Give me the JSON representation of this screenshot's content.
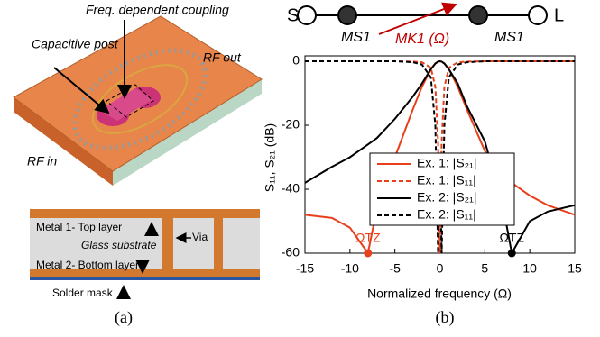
{
  "panel_a": {
    "labels": {
      "coupling": "Freq. dependent coupling",
      "post": "Capacitive post",
      "rf_out": "RF out",
      "rf_in": "RF in"
    },
    "cross_section": {
      "top": "Metal 1- Top layer",
      "glass": "Glass substrate",
      "via": "Via",
      "bottom": "Metal 2- Bottom layer",
      "mask": "Solder mask"
    },
    "caption": "(a)"
  },
  "coupling_diagram": {
    "source": "S",
    "load": "L",
    "m_s1_left": "MS1",
    "m_k1": "MK1 (Ω)",
    "m_s1_right": "MS1"
  },
  "chart_data": {
    "type": "line",
    "x": [
      -15,
      -12,
      -10,
      -8,
      -7,
      -5,
      -3,
      -2,
      -1,
      -0.5,
      -0.2,
      0,
      0.2,
      0.5,
      1,
      2,
      3,
      5,
      7,
      8,
      10,
      12,
      15
    ],
    "series": [
      {
        "name": "Ex. 1: |S₂₁|",
        "color": "#e8401c",
        "style": "solid",
        "values": [
          -48,
          -49,
          -52,
          -60,
          -46,
          -30,
          -15,
          -8,
          -2.5,
          -0.7,
          -0.1,
          0,
          -0.1,
          -0.7,
          -2.5,
          -8,
          -15,
          -28,
          -36,
          -38,
          -42,
          -45,
          -48
        ]
      },
      {
        "name": "Ex. 1: |S₁₁|",
        "color": "#e8401c",
        "style": "dashed",
        "values": [
          0,
          0,
          0,
          0,
          0,
          0,
          -0.1,
          -0.3,
          -2,
          -8,
          -25,
          -60,
          -25,
          -8,
          -2,
          -0.3,
          -0.1,
          0,
          0,
          0,
          0,
          0,
          0
        ]
      },
      {
        "name": "Ex. 2: |S₂₁|",
        "color": "#000000",
        "style": "solid",
        "values": [
          -38,
          -33,
          -30,
          -26,
          -24,
          -18,
          -11,
          -7,
          -2.5,
          -0.7,
          -0.1,
          0,
          -0.1,
          -0.7,
          -2.5,
          -7,
          -14,
          -25,
          -45,
          -60,
          -50,
          -47,
          -45
        ]
      },
      {
        "name": "Ex. 2: |S₁₁|",
        "color": "#000000",
        "style": "dashed",
        "values": [
          0,
          0,
          0,
          0,
          0,
          0,
          -0.3,
          -1,
          -5,
          -20,
          -60,
          -30,
          -60,
          -20,
          -5,
          -1,
          -0.3,
          0,
          0,
          0,
          0,
          0,
          0
        ]
      }
    ],
    "annotations": [
      {
        "text": "ΩTZ",
        "x": -8,
        "y": -60,
        "color": "#e8401c"
      },
      {
        "text": "ΩTZ",
        "x": 8,
        "y": -60,
        "color": "#000000"
      }
    ],
    "xlabel": "Normalized frequency (Ω)",
    "ylabel": "S₁₁, S₂₁ (dB)",
    "xlim": [
      -15,
      15
    ],
    "xticks": [
      -15,
      -10,
      -5,
      0,
      5,
      10,
      15
    ],
    "ylim": [
      -60,
      0
    ],
    "yticks": [
      0,
      -20,
      -40,
      -60
    ],
    "caption": "(b)"
  }
}
